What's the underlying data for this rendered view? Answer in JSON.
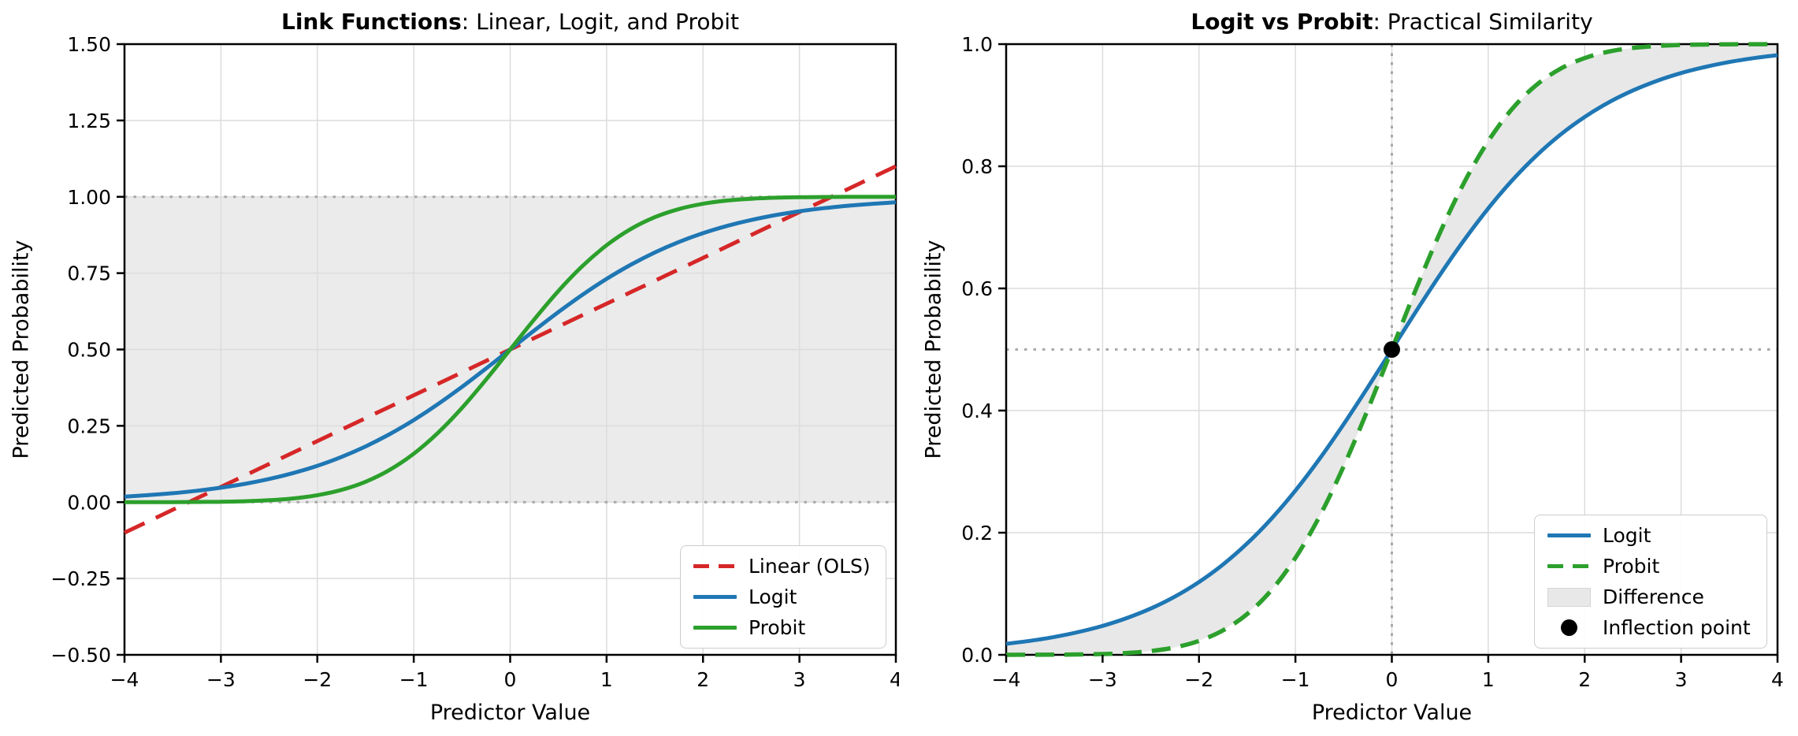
{
  "figure": {
    "background": "#ffffff"
  },
  "colors": {
    "linear_red": "#d62728",
    "logit_blue": "#1f77b4",
    "probit_green": "#2ca02c",
    "band_gray": "#ebebeb",
    "difference_gray": "#e8e8e8",
    "grid_gray": "#dcdcdc",
    "reference_gray": "#a8a8a8",
    "axis_black": "#000000",
    "legend_border": "#cccccc"
  },
  "chart_data": [
    {
      "type": "line",
      "title_bold": "Link Functions",
      "title_rest": ": Linear, Logit, and Probit",
      "xlabel": "Predictor Value",
      "ylabel": "Predicted Probability",
      "xlim": [
        -4,
        4
      ],
      "ylim": [
        -0.5,
        1.5
      ],
      "grid": true,
      "legend_position": "lower right",
      "xticks": {
        "values": [
          -4,
          -3,
          -2,
          -1,
          0,
          1,
          2,
          3,
          4
        ],
        "labels": [
          "−4",
          "−3",
          "−2",
          "−1",
          "0",
          "1",
          "2",
          "3",
          "4"
        ]
      },
      "yticks": {
        "values": [
          -0.5,
          -0.25,
          0,
          0.25,
          0.5,
          0.75,
          1,
          1.25,
          1.5
        ],
        "labels": [
          "−0.50",
          "−0.25",
          "0.00",
          "0.25",
          "0.50",
          "0.75",
          "1.00",
          "1.25",
          "1.50"
        ]
      },
      "band": {
        "from": 0,
        "to": 1,
        "color_key": "band_gray"
      },
      "reference_lines": [
        {
          "axis": "y",
          "at": 0
        },
        {
          "axis": "y",
          "at": 1
        }
      ],
      "x": [
        -4,
        -3.75,
        -3.5,
        -3.25,
        -3,
        -2.75,
        -2.5,
        -2.25,
        -2,
        -1.75,
        -1.5,
        -1.25,
        -1,
        -0.75,
        -0.5,
        -0.25,
        0,
        0.25,
        0.5,
        0.75,
        1,
        1.25,
        1.5,
        1.75,
        2,
        2.25,
        2.5,
        2.75,
        3,
        3.25,
        3.5,
        3.75,
        4
      ],
      "series": [
        {
          "name": "Linear (OLS)",
          "style": "dashed",
          "color_key": "linear_red",
          "width": 5,
          "dash": "28 16",
          "y": [
            -0.1,
            -0.0625,
            -0.025,
            0.0125,
            0.05,
            0.0875,
            0.125,
            0.1625,
            0.2,
            0.2375,
            0.275,
            0.3125,
            0.35,
            0.3875,
            0.425,
            0.4625,
            0.5,
            0.5375,
            0.575,
            0.6125,
            0.65,
            0.6875,
            0.725,
            0.7625,
            0.8,
            0.8375,
            0.875,
            0.9125,
            0.95,
            0.9875,
            1.025,
            1.0625,
            1.1
          ]
        },
        {
          "name": "Logit",
          "style": "solid",
          "color_key": "logit_blue",
          "width": 5,
          "dash": null,
          "y": [
            0.018,
            0.023,
            0.0293,
            0.0374,
            0.0474,
            0.0601,
            0.0759,
            0.0953,
            0.1192,
            0.148,
            0.1824,
            0.2227,
            0.2689,
            0.3208,
            0.3775,
            0.4378,
            0.5,
            0.5622,
            0.6225,
            0.6792,
            0.7311,
            0.7773,
            0.8176,
            0.852,
            0.8808,
            0.9047,
            0.9241,
            0.9399,
            0.9526,
            0.9626,
            0.9707,
            0.977,
            0.982
          ]
        },
        {
          "name": "Probit",
          "style": "solid",
          "color_key": "probit_green",
          "width": 5,
          "dash": null,
          "y": [
            0.0,
            0.0001,
            0.0002,
            0.0006,
            0.0013,
            0.003,
            0.0062,
            0.0122,
            0.0228,
            0.0401,
            0.0668,
            0.1056,
            0.1587,
            0.2266,
            0.3085,
            0.4013,
            0.5,
            0.5987,
            0.6915,
            0.7734,
            0.8413,
            0.8944,
            0.9332,
            0.9599,
            0.9772,
            0.9878,
            0.9938,
            0.997,
            0.9987,
            0.9994,
            0.9998,
            0.9999,
            1.0
          ]
        }
      ],
      "legend": [
        {
          "label": "Linear (OLS)",
          "swatch": "dashed-line",
          "color_key": "linear_red"
        },
        {
          "label": "Logit",
          "swatch": "line",
          "color_key": "logit_blue"
        },
        {
          "label": "Probit",
          "swatch": "line",
          "color_key": "probit_green"
        }
      ]
    },
    {
      "type": "line",
      "title_bold": "Logit vs Probit",
      "title_rest": ": Practical Similarity",
      "xlabel": "Predictor Value",
      "ylabel": "Predicted Probability",
      "xlim": [
        -4,
        4
      ],
      "ylim": [
        0,
        1
      ],
      "grid": true,
      "legend_position": "lower right",
      "xticks": {
        "values": [
          -4,
          -3,
          -2,
          -1,
          0,
          1,
          2,
          3,
          4
        ],
        "labels": [
          "−4",
          "−3",
          "−2",
          "−1",
          "0",
          "1",
          "2",
          "3",
          "4"
        ]
      },
      "yticks": {
        "values": [
          0,
          0.2,
          0.4,
          0.6,
          0.8,
          1
        ],
        "labels": [
          "0.0",
          "0.2",
          "0.4",
          "0.6",
          "0.8",
          "1.0"
        ]
      },
      "reference_lines": [
        {
          "axis": "y",
          "at": 0.5
        },
        {
          "axis": "x",
          "at": 0
        }
      ],
      "x": [
        -4,
        -3.75,
        -3.5,
        -3.25,
        -3,
        -2.75,
        -2.5,
        -2.25,
        -2,
        -1.75,
        -1.5,
        -1.25,
        -1,
        -0.75,
        -0.5,
        -0.25,
        0,
        0.25,
        0.5,
        0.75,
        1,
        1.25,
        1.5,
        1.75,
        2,
        2.25,
        2.5,
        2.75,
        3,
        3.25,
        3.5,
        3.75,
        4
      ],
      "fill_between": {
        "upper": "Probit",
        "lower": "Logit",
        "label": "Difference",
        "color_key": "difference_gray"
      },
      "series": [
        {
          "name": "Logit",
          "style": "solid",
          "color_key": "logit_blue",
          "width": 5,
          "dash": null,
          "y": [
            0.018,
            0.023,
            0.0293,
            0.0374,
            0.0474,
            0.0601,
            0.0759,
            0.0953,
            0.1192,
            0.148,
            0.1824,
            0.2227,
            0.2689,
            0.3208,
            0.3775,
            0.4378,
            0.5,
            0.5622,
            0.6225,
            0.6792,
            0.7311,
            0.7773,
            0.8176,
            0.852,
            0.8808,
            0.9047,
            0.9241,
            0.9399,
            0.9526,
            0.9626,
            0.9707,
            0.977,
            0.982
          ]
        },
        {
          "name": "Probit",
          "style": "dashed",
          "color_key": "probit_green",
          "width": 5.5,
          "dash": "24 13",
          "y": [
            0.0,
            0.0001,
            0.0002,
            0.0006,
            0.0013,
            0.003,
            0.0062,
            0.0122,
            0.0228,
            0.0401,
            0.0668,
            0.1056,
            0.1587,
            0.2266,
            0.3085,
            0.4013,
            0.5,
            0.5987,
            0.6915,
            0.7734,
            0.8413,
            0.8944,
            0.9332,
            0.9599,
            0.9772,
            0.9878,
            0.9938,
            0.997,
            0.9987,
            0.9994,
            0.9998,
            0.9999,
            1.0
          ]
        }
      ],
      "point": {
        "x": 0,
        "y": 0.5,
        "label": "Inflection point",
        "color_key": "axis_black"
      },
      "legend": [
        {
          "label": "Logit",
          "swatch": "line",
          "color_key": "logit_blue"
        },
        {
          "label": "Probit",
          "swatch": "dashed-line",
          "color_key": "probit_green"
        },
        {
          "label": "Difference",
          "swatch": "patch",
          "color_key": "difference_gray"
        },
        {
          "label": "Inflection point",
          "swatch": "dot",
          "color_key": "axis_black"
        }
      ]
    }
  ]
}
